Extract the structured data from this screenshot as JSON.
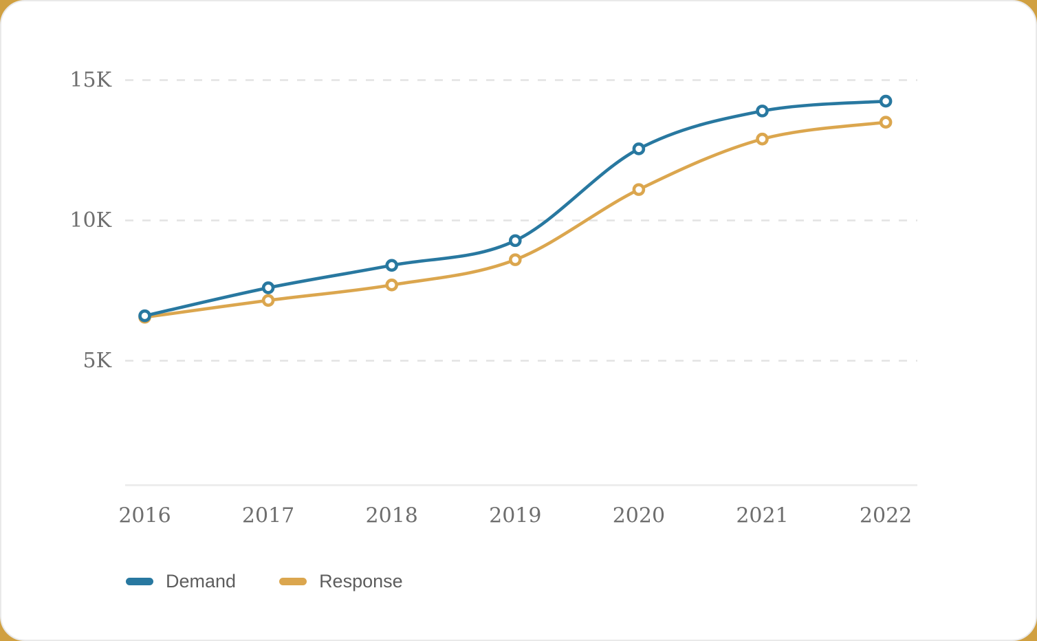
{
  "chart_data": {
    "type": "line",
    "x": [
      "2016",
      "2017",
      "2018",
      "2019",
      "2020",
      "2021",
      "2022"
    ],
    "series": [
      {
        "name": "Demand",
        "color": "#2878A0",
        "values": [
          6600,
          7600,
          8400,
          9280,
          12550,
          13900,
          14250
        ]
      },
      {
        "name": "Response",
        "color": "#DBA64E",
        "values": [
          6550,
          7150,
          7700,
          8600,
          11100,
          12900,
          13500
        ]
      }
    ],
    "title": "",
    "xlabel": "",
    "ylabel": "",
    "yticks": [
      {
        "value": 15000,
        "label": "15K"
      },
      {
        "value": 10000,
        "label": "10K"
      },
      {
        "value": 5000,
        "label": "5K"
      }
    ],
    "ylim_estimate": [
      600,
      15600
    ],
    "grid": "horizontal-dashed",
    "legend_position": "bottom-left",
    "marker_style": "open-circle",
    "curve": "smooth"
  },
  "legend": {
    "items": [
      {
        "label": "Demand",
        "color": "#2878A0"
      },
      {
        "label": "Response",
        "color": "#DBA64E"
      }
    ]
  },
  "colors": {
    "page_background": "#D0A041",
    "card_background": "#FFFFFF",
    "card_border": "#E9E9E9",
    "gridline": "#E3E3E3",
    "axis_line": "#EDEDED",
    "tick_text": "#6E6E6E",
    "legend_text": "#5D5D5D",
    "demand": "#2878A0",
    "response": "#DBA64E"
  }
}
